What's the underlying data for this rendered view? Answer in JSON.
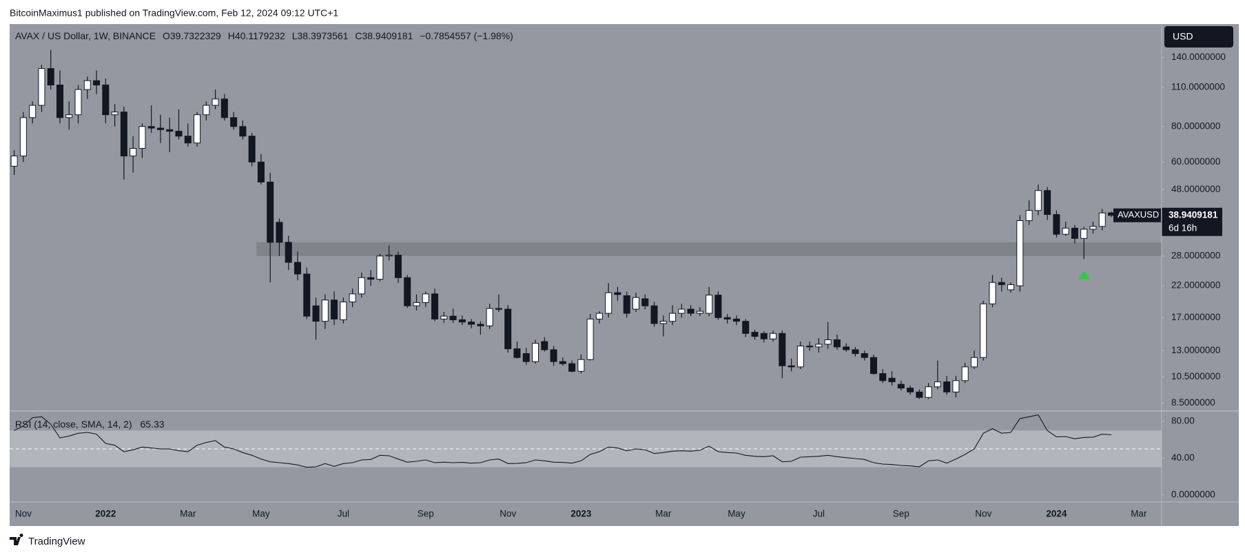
{
  "header": {
    "publisher": "BitcoinMaximus1 published on TradingView.com, Feb 12, 2024 09:12 UTC+1",
    "brand": "TradingView"
  },
  "chart_data": {
    "type": "candlestick",
    "title": "AVAX / US Dollar, 1W, BINANCE",
    "ohlc_letters": [
      "O",
      "H",
      "L",
      "C"
    ],
    "change_label": "−0.7854557 (−1.98%)",
    "currency": "USD",
    "symbol": "AVAXUSD",
    "countdown": "6d 16h",
    "log_scale": true,
    "up_color": "#ffffff",
    "down_color": "#131722",
    "background": "#9598a1",
    "categories": [
      null,
      "Nov",
      null,
      null,
      null,
      null,
      null,
      null,
      null,
      null,
      "2022",
      null,
      null,
      null,
      null,
      null,
      null,
      null,
      null,
      "Mar",
      null,
      null,
      null,
      null,
      null,
      null,
      null,
      "May",
      null,
      null,
      null,
      null,
      null,
      null,
      null,
      null,
      "Jul",
      null,
      null,
      null,
      null,
      null,
      null,
      null,
      null,
      "Sep",
      null,
      null,
      null,
      null,
      null,
      null,
      null,
      null,
      "Nov",
      null,
      null,
      null,
      null,
      null,
      null,
      null,
      "2023",
      null,
      null,
      null,
      null,
      null,
      null,
      null,
      null,
      "Mar",
      null,
      null,
      null,
      null,
      null,
      null,
      null,
      "May",
      null,
      null,
      null,
      null,
      null,
      null,
      null,
      null,
      "Jul",
      null,
      null,
      null,
      null,
      null,
      null,
      null,
      null,
      "Sep",
      null,
      null,
      null,
      null,
      null,
      null,
      null,
      null,
      "Nov",
      null,
      null,
      null,
      null,
      null,
      null,
      null,
      "2024",
      null,
      null,
      null,
      null,
      null,
      null,
      null,
      null,
      "Mar",
      null,
      null
    ],
    "open": [
      58,
      63,
      86,
      95,
      128,
      112,
      86,
      88,
      108,
      116,
      112,
      88,
      90,
      63,
      67,
      80,
      79,
      78,
      77,
      74,
      70,
      88,
      95,
      100,
      86,
      80,
      74,
      60,
      51,
      36.8,
      31.3,
      26.6,
      24.2,
      18.7,
      16.5,
      19.6,
      16.7,
      19.3,
      20.6,
      23.5,
      23.2,
      28,
      28.2,
      23.5,
      18.7,
      19.2,
      20.6,
      16.8,
      17.2,
      16.7,
      16.4,
      16.1,
      15.9,
      18.3,
      18.2,
      13.2,
      12.7,
      11.9,
      14,
      13.1,
      11.9,
      11.7,
      11,
      12.1,
      16.8,
      17.6,
      20.8,
      20.3,
      18.2,
      19.8,
      18.7,
      16.2,
      16.5,
      17.6,
      18.2,
      17.6,
      17.6,
      20.4,
      17,
      16.8,
      16.5,
      15.1,
      14.95,
      14.3,
      14.95,
      11.5,
      11.4,
      13.5,
      13.4,
      13.7,
      14.2,
      13.4,
      13.1,
      12.7,
      12.3,
      10.8,
      10.4,
      9.9,
      9.6,
      9.3,
      8.9,
      9.7,
      10.1,
      9.3,
      10.2,
      11.4,
      12.3,
      19,
      22.6,
      21.3,
      22,
      37.3,
      40.5,
      47.6,
      39.2,
      33.4,
      35.1,
      32.3,
      34.8,
      35.6,
      39.7322329,
      null,
      null,
      null,
      null,
      null
    ],
    "high": [
      66,
      90,
      98,
      132,
      149,
      126,
      98,
      112,
      120,
      126,
      118,
      96,
      94,
      74,
      82,
      95,
      88,
      86,
      92,
      82,
      90,
      98,
      108,
      104,
      90,
      84,
      76,
      64,
      55,
      38,
      33,
      29,
      25.5,
      20,
      20.5,
      21,
      20,
      21.5,
      24.5,
      25,
      28.5,
      30.5,
      29,
      24,
      20.5,
      21,
      21.5,
      17.8,
      18.3,
      17.3,
      16.8,
      16.5,
      19,
      20.5,
      18.8,
      14,
      13.3,
      14.2,
      14.5,
      13.5,
      12.3,
      12,
      12.6,
      17.5,
      17.9,
      22.5,
      21.8,
      21,
      20.8,
      20.5,
      19.3,
      17.3,
      18.8,
      19,
      18.8,
      18.5,
      21.8,
      21,
      17.5,
      17.3,
      16.8,
      15.4,
      15.2,
      15.3,
      15.3,
      12.2,
      14,
      14,
      14.4,
      16.4,
      14.8,
      13.8,
      13.4,
      13,
      12.6,
      11.2,
      11,
      10.2,
      9.8,
      9.5,
      10,
      12,
      10.6,
      10.6,
      11.8,
      13,
      19.5,
      24,
      23.5,
      22.6,
      39,
      44,
      50,
      49,
      40.5,
      37,
      36,
      35.5,
      37,
      41,
      40.1179232,
      null,
      null,
      null,
      null,
      null
    ],
    "low": [
      54,
      60,
      82,
      90,
      108,
      82,
      78,
      82,
      100,
      104,
      82,
      80,
      52,
      55,
      62,
      76,
      70,
      65,
      72,
      68,
      68,
      84,
      92,
      84,
      78,
      72,
      58,
      50,
      22.6,
      28,
      25,
      23,
      16.8,
      14.2,
      15.5,
      16,
      16.2,
      18.5,
      20,
      22,
      22.8,
      27,
      22.5,
      18.4,
      18,
      18.5,
      16.5,
      16.3,
      16.3,
      16,
      15.6,
      14.8,
      15.5,
      17.8,
      12.8,
      12.2,
      11.6,
      11.7,
      12.9,
      11.5,
      11.5,
      10.9,
      10.8,
      12,
      16.2,
      17,
      19.5,
      17,
      17.8,
      18.2,
      15.8,
      14.6,
      16,
      17,
      17.2,
      17.2,
      17.2,
      16.7,
      16.2,
      16,
      14.5,
      14.2,
      13.9,
      14,
      10.4,
      11,
      11.2,
      13,
      12.8,
      13.2,
      13.1,
      12.9,
      12.4,
      12,
      10.7,
      10,
      9.8,
      9.4,
      9.1,
      8.8,
      8.8,
      9.5,
      9.1,
      8.9,
      10,
      11.2,
      12,
      18.5,
      21,
      20.8,
      21,
      36,
      39,
      37.5,
      32.5,
      33,
      31,
      27.3,
      33.6,
      34.5,
      38.3973561,
      null,
      null,
      null,
      null,
      null
    ],
    "close": [
      63,
      86,
      95,
      128,
      112,
      86,
      88,
      108,
      116,
      112,
      88,
      90,
      63,
      67,
      80,
      79,
      78,
      77,
      74,
      70,
      88,
      95,
      100,
      86,
      80,
      74,
      60,
      51,
      31.3,
      31.3,
      26.6,
      24.2,
      17.2,
      16.5,
      19.6,
      16.8,
      19.3,
      20.6,
      23.5,
      23.2,
      28,
      28.2,
      23.5,
      18.7,
      19.2,
      20.6,
      16.8,
      17.2,
      16.7,
      16.4,
      16.1,
      15.9,
      18.3,
      18.2,
      13.2,
      12.3,
      11.9,
      13.8,
      13.1,
      11.9,
      11.7,
      11,
      12.1,
      16.8,
      17.6,
      20.8,
      20.5,
      17.6,
      20,
      18.7,
      16.2,
      16.5,
      17.6,
      18.2,
      17.6,
      17.9,
      20.4,
      17,
      16.8,
      16.5,
      14.95,
      14.6,
      14.3,
      14.95,
      11.5,
      11.4,
      13.5,
      13.4,
      13.7,
      14.2,
      13.4,
      13.1,
      12.7,
      12.3,
      10.8,
      10.2,
      10.1,
      9.6,
      9.3,
      8.9,
      9.7,
      10.1,
      9.3,
      10.2,
      11.4,
      12.3,
      19,
      22.6,
      22.2,
      22.2,
      37.3,
      40.5,
      47.6,
      39.2,
      33.4,
      35.1,
      32.3,
      34.8,
      35.6,
      39.7,
      38.9409181,
      null,
      null,
      null,
      null,
      null
    ],
    "ylim": [
      7.97,
      183.5
    ],
    "yticks": [
      {
        "value": 8.5,
        "label": "8.5000000"
      },
      {
        "value": 10.5,
        "label": "10.5000000"
      },
      {
        "value": 13,
        "label": "13.0000000"
      },
      {
        "value": 17,
        "label": "17.0000000"
      },
      {
        "value": 22,
        "label": "22.0000000"
      },
      {
        "value": 28,
        "label": "28.0000000"
      },
      {
        "value": 48,
        "label": "48.0000000"
      },
      {
        "value": 60,
        "label": "60.0000000"
      },
      {
        "value": 80,
        "label": "80.0000000"
      },
      {
        "value": 110,
        "label": "110.0000000"
      },
      {
        "value": 140,
        "label": "140.0000000"
      }
    ],
    "support_zone": {
      "low": 28,
      "high": 31.3,
      "start": 27,
      "color": "#80838a"
    },
    "marker": {
      "index": 117,
      "value": 24,
      "color": "#2ecc40"
    },
    "rsi": {
      "title": "RSI (14, close, SMA, 14, 2)",
      "color": "#131722",
      "band_color": "#b2b5bc",
      "band": [
        30,
        70
      ],
      "midline": 50,
      "ylim": [
        -7.7,
        91.2
      ],
      "yticks": [
        {
          "value": 0,
          "label": "0.0000000"
        },
        {
          "value": 40,
          "label": "40.00"
        },
        {
          "value": 80,
          "label": "80.00"
        }
      ],
      "values": [
        70,
        75,
        84,
        85,
        77,
        62,
        64,
        67,
        68,
        66,
        56,
        54,
        47,
        49,
        52,
        51,
        50,
        50,
        48,
        47,
        54,
        57,
        59,
        52,
        50,
        46,
        43,
        39,
        36,
        35,
        34,
        32.5,
        30,
        30.5,
        34,
        31,
        34,
        35,
        38,
        38.5,
        43,
        42.5,
        39,
        35.5,
        36.5,
        38,
        35,
        35.5,
        35,
        35.3,
        34.5,
        35,
        38,
        39,
        34,
        34.2,
        35,
        38,
        37,
        35.5,
        35.3,
        34.5,
        37,
        44,
        47,
        52,
        51,
        48,
        50,
        49,
        45,
        46,
        47.5,
        48,
        47.5,
        48.5,
        53,
        47,
        46,
        45.5,
        43,
        42,
        41.5,
        42.5,
        36,
        36.5,
        41,
        41.5,
        42,
        43,
        41.5,
        40.5,
        39.5,
        38.5,
        35,
        33.5,
        33,
        32,
        31.5,
        30.5,
        37,
        38,
        34.5,
        39,
        44,
        50,
        67,
        72,
        67,
        68,
        83,
        85,
        87,
        70,
        63,
        63.5,
        61,
        62.5,
        62.8,
        66,
        65.33,
        null,
        null,
        null,
        null,
        null
      ]
    }
  }
}
